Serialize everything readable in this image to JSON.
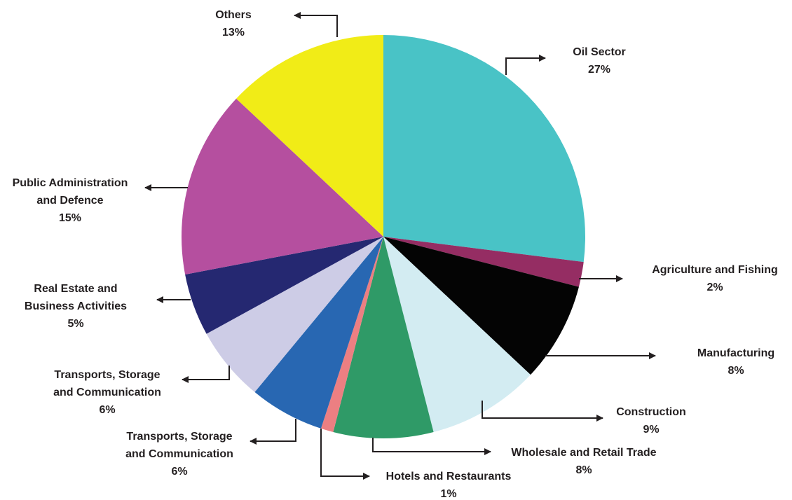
{
  "chart_data": {
    "type": "pie",
    "title": "",
    "slices": [
      {
        "label": "Oil Sector",
        "value": 27,
        "percent_label": "27%",
        "color": "#49c3c6"
      },
      {
        "label": "Agriculture and Fishing",
        "value": 2,
        "percent_label": "2%",
        "color": "#952d63"
      },
      {
        "label": "Manufacturing",
        "value": 8,
        "percent_label": "8%",
        "color": "#040404"
      },
      {
        "label": "Construction",
        "value": 9,
        "percent_label": "9%",
        "color": "#d3ecf2"
      },
      {
        "label": "Wholesale and Retail Trade",
        "value": 8,
        "percent_label": "8%",
        "color": "#2f9a67"
      },
      {
        "label": "Hotels and Restaurants",
        "value": 1,
        "percent_label": "1%",
        "color": "#ec7f82"
      },
      {
        "label": "Transports, Storage and Communication",
        "value": 6,
        "percent_label": "6%",
        "color": "#2867b2"
      },
      {
        "label": "Transports, Storage and Communication",
        "value": 6,
        "percent_label": "6%",
        "color": "#cdcce6"
      },
      {
        "label": "Real Estate and Business Activities",
        "value": 5,
        "percent_label": "5%",
        "color": "#252871"
      },
      {
        "label": "Public Administration and Defence",
        "value": 15,
        "percent_label": "15%",
        "color": "#b54f9f"
      },
      {
        "label": "Others",
        "value": 13,
        "percent_label": "13%",
        "color": "#f1ec17"
      }
    ],
    "label_lines": [
      [
        "Oil Sector",
        "27%"
      ],
      [
        "Agriculture and Fishing",
        "2%"
      ],
      [
        "Manufacturing",
        "8%"
      ],
      [
        "Construction",
        "9%"
      ],
      [
        "Wholesale and Retail Trade",
        "8%"
      ],
      [
        "Hotels and Restaurants",
        "1%"
      ],
      [
        "Transports, Storage",
        "and Communication",
        "6%"
      ],
      [
        "Transports, Storage",
        "and Communication",
        "6%"
      ],
      [
        "Real Estate and",
        "Business Activities",
        "5%"
      ],
      [
        "Public Administration",
        "and Defence",
        "15%"
      ],
      [
        "Others",
        "13%"
      ]
    ],
    "legend": "none",
    "grid": false
  }
}
